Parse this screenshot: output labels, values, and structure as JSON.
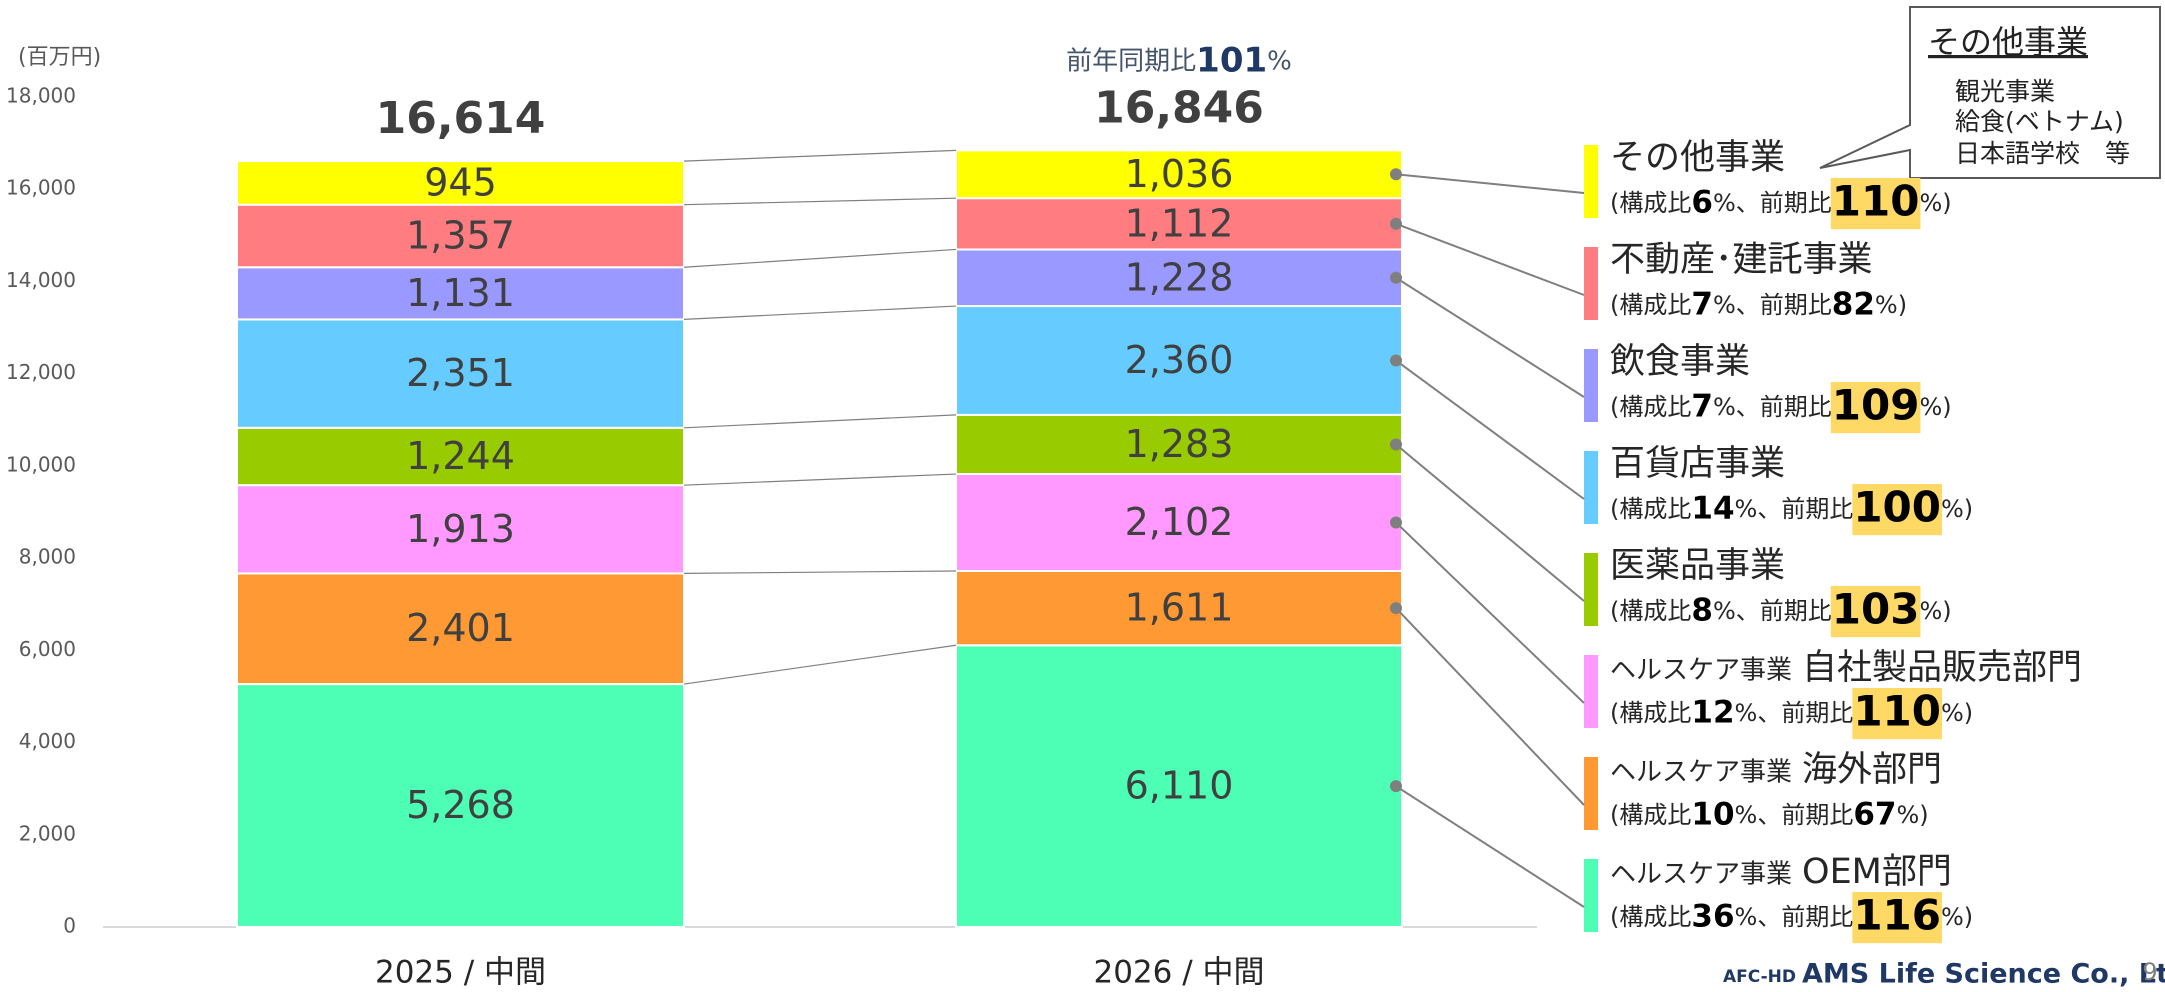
{
  "chart_data": {
    "type": "stacked_bar",
    "unit_label": "(百万円)",
    "categories": [
      "2025 / 中間",
      "2026 / 中間"
    ],
    "totals": [
      16614,
      16846
    ],
    "total_labels": [
      "16,614",
      "16,846"
    ],
    "yoy": {
      "text": "前年同期比",
      "value": 101,
      "unit": "%"
    },
    "ylim": [
      0,
      18000
    ],
    "yticks": [
      0,
      {
        "value": 2000,
        "label": "2,000"
      },
      {
        "value": 4000,
        "label": "4,000"
      },
      {
        "value": 6000,
        "label": "6,000"
      },
      {
        "value": 8000,
        "label": "8,000"
      },
      {
        "value": 10000,
        "label": "10,000"
      },
      {
        "value": 12000,
        "label": "12,000"
      },
      {
        "value": 14000,
        "label": "14,000"
      },
      {
        "value": 16000,
        "label": "16,000"
      },
      {
        "value": 18000,
        "label": "18,000"
      }
    ],
    "grid": false,
    "legend_parts": {
      "open": "(構成比",
      "mid": "%、前期比",
      "close": "%)"
    },
    "highlight_color": "#ffd966",
    "series": [
      {
        "group": "ヘルスケア事業",
        "name": "OEM部門",
        "color": "#4dffb5",
        "values": [
          5268,
          6110
        ],
        "value_labels": [
          "5,268",
          "6,110"
        ],
        "composition": 36,
        "yoy": 116,
        "highlight": true
      },
      {
        "group": "ヘルスケア事業",
        "name": "海外部門",
        "color": "#ff9933",
        "values": [
          2401,
          1611
        ],
        "value_labels": [
          "2,401",
          "1,611"
        ],
        "composition": 10,
        "yoy": 67,
        "highlight": false
      },
      {
        "group": "ヘルスケア事業",
        "name": "自社製品販売部門",
        "color": "#ff99ff",
        "values": [
          1913,
          2102
        ],
        "value_labels": [
          "1,913",
          "2,102"
        ],
        "composition": 12,
        "yoy": 110,
        "highlight": true
      },
      {
        "name": "医薬品事業",
        "color": "#99cc00",
        "values": [
          1244,
          1283
        ],
        "value_labels": [
          "1,244",
          "1,283"
        ],
        "composition": 8,
        "yoy": 103,
        "highlight": true
      },
      {
        "name": "百貨店事業",
        "color": "#66ccff",
        "values": [
          2351,
          2360
        ],
        "value_labels": [
          "2,351",
          "2,360"
        ],
        "composition": 14,
        "yoy": 100,
        "highlight": true
      },
      {
        "name": "飲食事業",
        "color": "#9999ff",
        "values": [
          1131,
          1228
        ],
        "value_labels": [
          "1,131",
          "1,228"
        ],
        "composition": 7,
        "yoy": 109,
        "highlight": true
      },
      {
        "name": "不動産･建託事業",
        "color": "#ff7c80",
        "values": [
          1357,
          1112
        ],
        "value_labels": [
          "1,357",
          "1,112"
        ],
        "composition": 7,
        "yoy": 82,
        "highlight": false
      },
      {
        "name": "その他事業",
        "color": "#ffff00",
        "values": [
          945,
          1036
        ],
        "value_labels": [
          "945",
          "1,036"
        ],
        "composition": 6,
        "yoy": 110,
        "highlight": true
      }
    ]
  },
  "callout": {
    "title": "その他事業",
    "items": [
      "観光事業",
      "給食(ベトナム)",
      "日本語学校　等"
    ]
  },
  "footer": {
    "prefix": "AFC-HD",
    "company": "AMS Life Science Co., Ltd.",
    "page": "9"
  }
}
